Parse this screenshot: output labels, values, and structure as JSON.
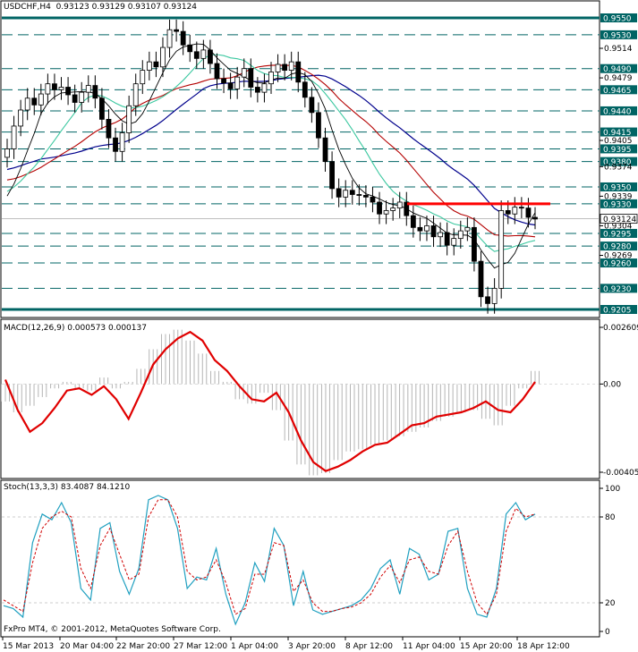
{
  "chart_data": [
    {
      "type": "candlestick",
      "title": "USDCHF,H4",
      "ohlc_text": "0.93123 0.93129 0.93107 0.93124",
      "current_price": "0.93124",
      "price_labels": [
        "0.9550",
        "0.9530",
        "0.9514",
        "0.9490",
        "0.9479",
        "0.9465",
        "0.9440",
        "0.9415",
        "0.9405",
        "0.9395",
        "0.9380",
        "0.9374",
        "0.9350",
        "0.9339",
        "0.9330",
        "0.9312",
        "0.9304",
        "0.9295",
        "0.9280",
        "0.9269",
        "0.9260",
        "0.9230",
        "0.9205"
      ],
      "highlighted_levels": [
        "0.9550",
        "0.9530",
        "0.9490",
        "0.9465",
        "0.9440",
        "0.9415",
        "0.9395",
        "0.9380",
        "0.9350",
        "0.9330",
        "0.9295",
        "0.9280",
        "0.9260",
        "0.9230",
        "0.9205"
      ],
      "ylim": [
        0.9205,
        0.955
      ],
      "colors": {
        "level_line": "#006464",
        "resistance_line": "#ff0000",
        "ma_black": "#000000",
        "ma_green": "#3cc8a0",
        "ma_red": "#b40000",
        "ma_blue": "#00008c"
      },
      "x_ticks": [
        "15 Mar 2013",
        "20 Mar 04:00",
        "22 Mar 20:00",
        "27 Mar 12:00",
        "1 Apr 04:00",
        "3 Apr 20:00",
        "8 Apr 12:00",
        "11 Apr 04:00",
        "15 Apr 20:00",
        "18 Apr 12:00"
      ],
      "close_series": [
        0.9395,
        0.9422,
        0.9441,
        0.9455,
        0.9447,
        0.946,
        0.9472,
        0.9465,
        0.9468,
        0.9459,
        0.945,
        0.9462,
        0.947,
        0.9455,
        0.943,
        0.9408,
        0.9392,
        0.9414,
        0.9446,
        0.9472,
        0.9488,
        0.9498,
        0.9492,
        0.9515,
        0.9536,
        0.9534,
        0.9518,
        0.951,
        0.9502,
        0.9512,
        0.9496,
        0.9478,
        0.9473,
        0.9466,
        0.948,
        0.949,
        0.9468,
        0.9462,
        0.9472,
        0.9486,
        0.9495,
        0.9488,
        0.9498,
        0.9474,
        0.9456,
        0.9438,
        0.9408,
        0.938,
        0.9348,
        0.9338,
        0.9346,
        0.9341,
        0.934,
        0.9338,
        0.9332,
        0.9318,
        0.9322,
        0.9325,
        0.9332,
        0.9316,
        0.9302,
        0.9298,
        0.9304,
        0.9291,
        0.9296,
        0.9281,
        0.9289,
        0.9298,
        0.9302,
        0.9262,
        0.922,
        0.9212,
        0.923,
        0.9322,
        0.9318,
        0.9326,
        0.9325,
        0.9314,
        0.9312
      ],
      "resistance_level": 0.933
    },
    {
      "type": "line",
      "title": "MACD(12,26,9) 0.000573 0.000137",
      "y_labels": [
        "0.002609",
        "0.00",
        "-0.004059"
      ],
      "ylim": [
        -0.004059,
        0.002609
      ],
      "signal_series": [
        0.0002,
        -0.0012,
        -0.0022,
        -0.0018,
        -0.0011,
        -0.0003,
        -0.0002,
        -0.0005,
        -0.0001,
        -0.0007,
        -0.0016,
        -0.0004,
        0.0009,
        0.0016,
        0.0021,
        0.0024,
        0.002,
        0.0011,
        0.0006,
        -0.0001,
        -0.0007,
        -0.0008,
        -0.0004,
        -0.0013,
        -0.0026,
        -0.0036,
        -0.004,
        -0.0038,
        -0.0035,
        -0.0031,
        -0.0028,
        -0.0027,
        -0.0023,
        -0.0019,
        -0.0018,
        -0.0015,
        -0.0014,
        -0.0013,
        -0.0011,
        -0.0008,
        -0.0012,
        -0.0013,
        -0.0007,
        0.0001
      ],
      "histogram_series": [
        -0.0008,
        -0.0013,
        -0.001,
        -0.0006,
        -0.0002,
        0.0001,
        -0.0002,
        -0.0003,
        0.0003,
        -0.0002,
        0.0001,
        0.0007,
        0.0016,
        0.0023,
        0.0025,
        0.002,
        0.0014,
        0.0006,
        0.0001,
        -0.0007,
        -0.0009,
        -0.0004,
        -0.0012,
        -0.0026,
        -0.0037,
        -0.0042,
        -0.0041,
        -0.0035,
        -0.0031,
        -0.003,
        -0.0028,
        -0.0026,
        -0.0024,
        -0.0022,
        -0.002,
        -0.0017,
        -0.0015,
        -0.0013,
        -0.0012,
        -0.0016,
        -0.0019,
        -0.001,
        -0.0002,
        0.0006
      ]
    },
    {
      "type": "line",
      "title": "Stoch(13,3,3) 83.4087 84.1210",
      "y_labels": [
        "100",
        "80",
        "20",
        "0"
      ],
      "ylim": [
        0,
        100
      ],
      "k_series": [
        18,
        16,
        10,
        62,
        82,
        78,
        90,
        76,
        30,
        22,
        72,
        76,
        42,
        26,
        44,
        92,
        95,
        92,
        72,
        30,
        38,
        36,
        58,
        26,
        5,
        20,
        48,
        35,
        72,
        60,
        18,
        42,
        15,
        12,
        14,
        16,
        18,
        22,
        30,
        44,
        50,
        26,
        58,
        54,
        36,
        40,
        70,
        72,
        30,
        12,
        10,
        30,
        82,
        90,
        78,
        82
      ],
      "d_series": [
        22,
        18,
        14,
        48,
        72,
        80,
        84,
        80,
        44,
        30,
        60,
        72,
        54,
        36,
        40,
        80,
        92,
        92,
        80,
        42,
        36,
        38,
        50,
        34,
        12,
        16,
        40,
        40,
        62,
        60,
        28,
        36,
        20,
        14,
        14,
        16,
        17,
        20,
        26,
        38,
        46,
        34,
        50,
        52,
        42,
        40,
        60,
        70,
        42,
        20,
        12,
        26,
        70,
        86,
        80,
        82
      ]
    }
  ],
  "footer": "FxPro MT4, © 2001-2012, MetaQuotes Software Corp."
}
